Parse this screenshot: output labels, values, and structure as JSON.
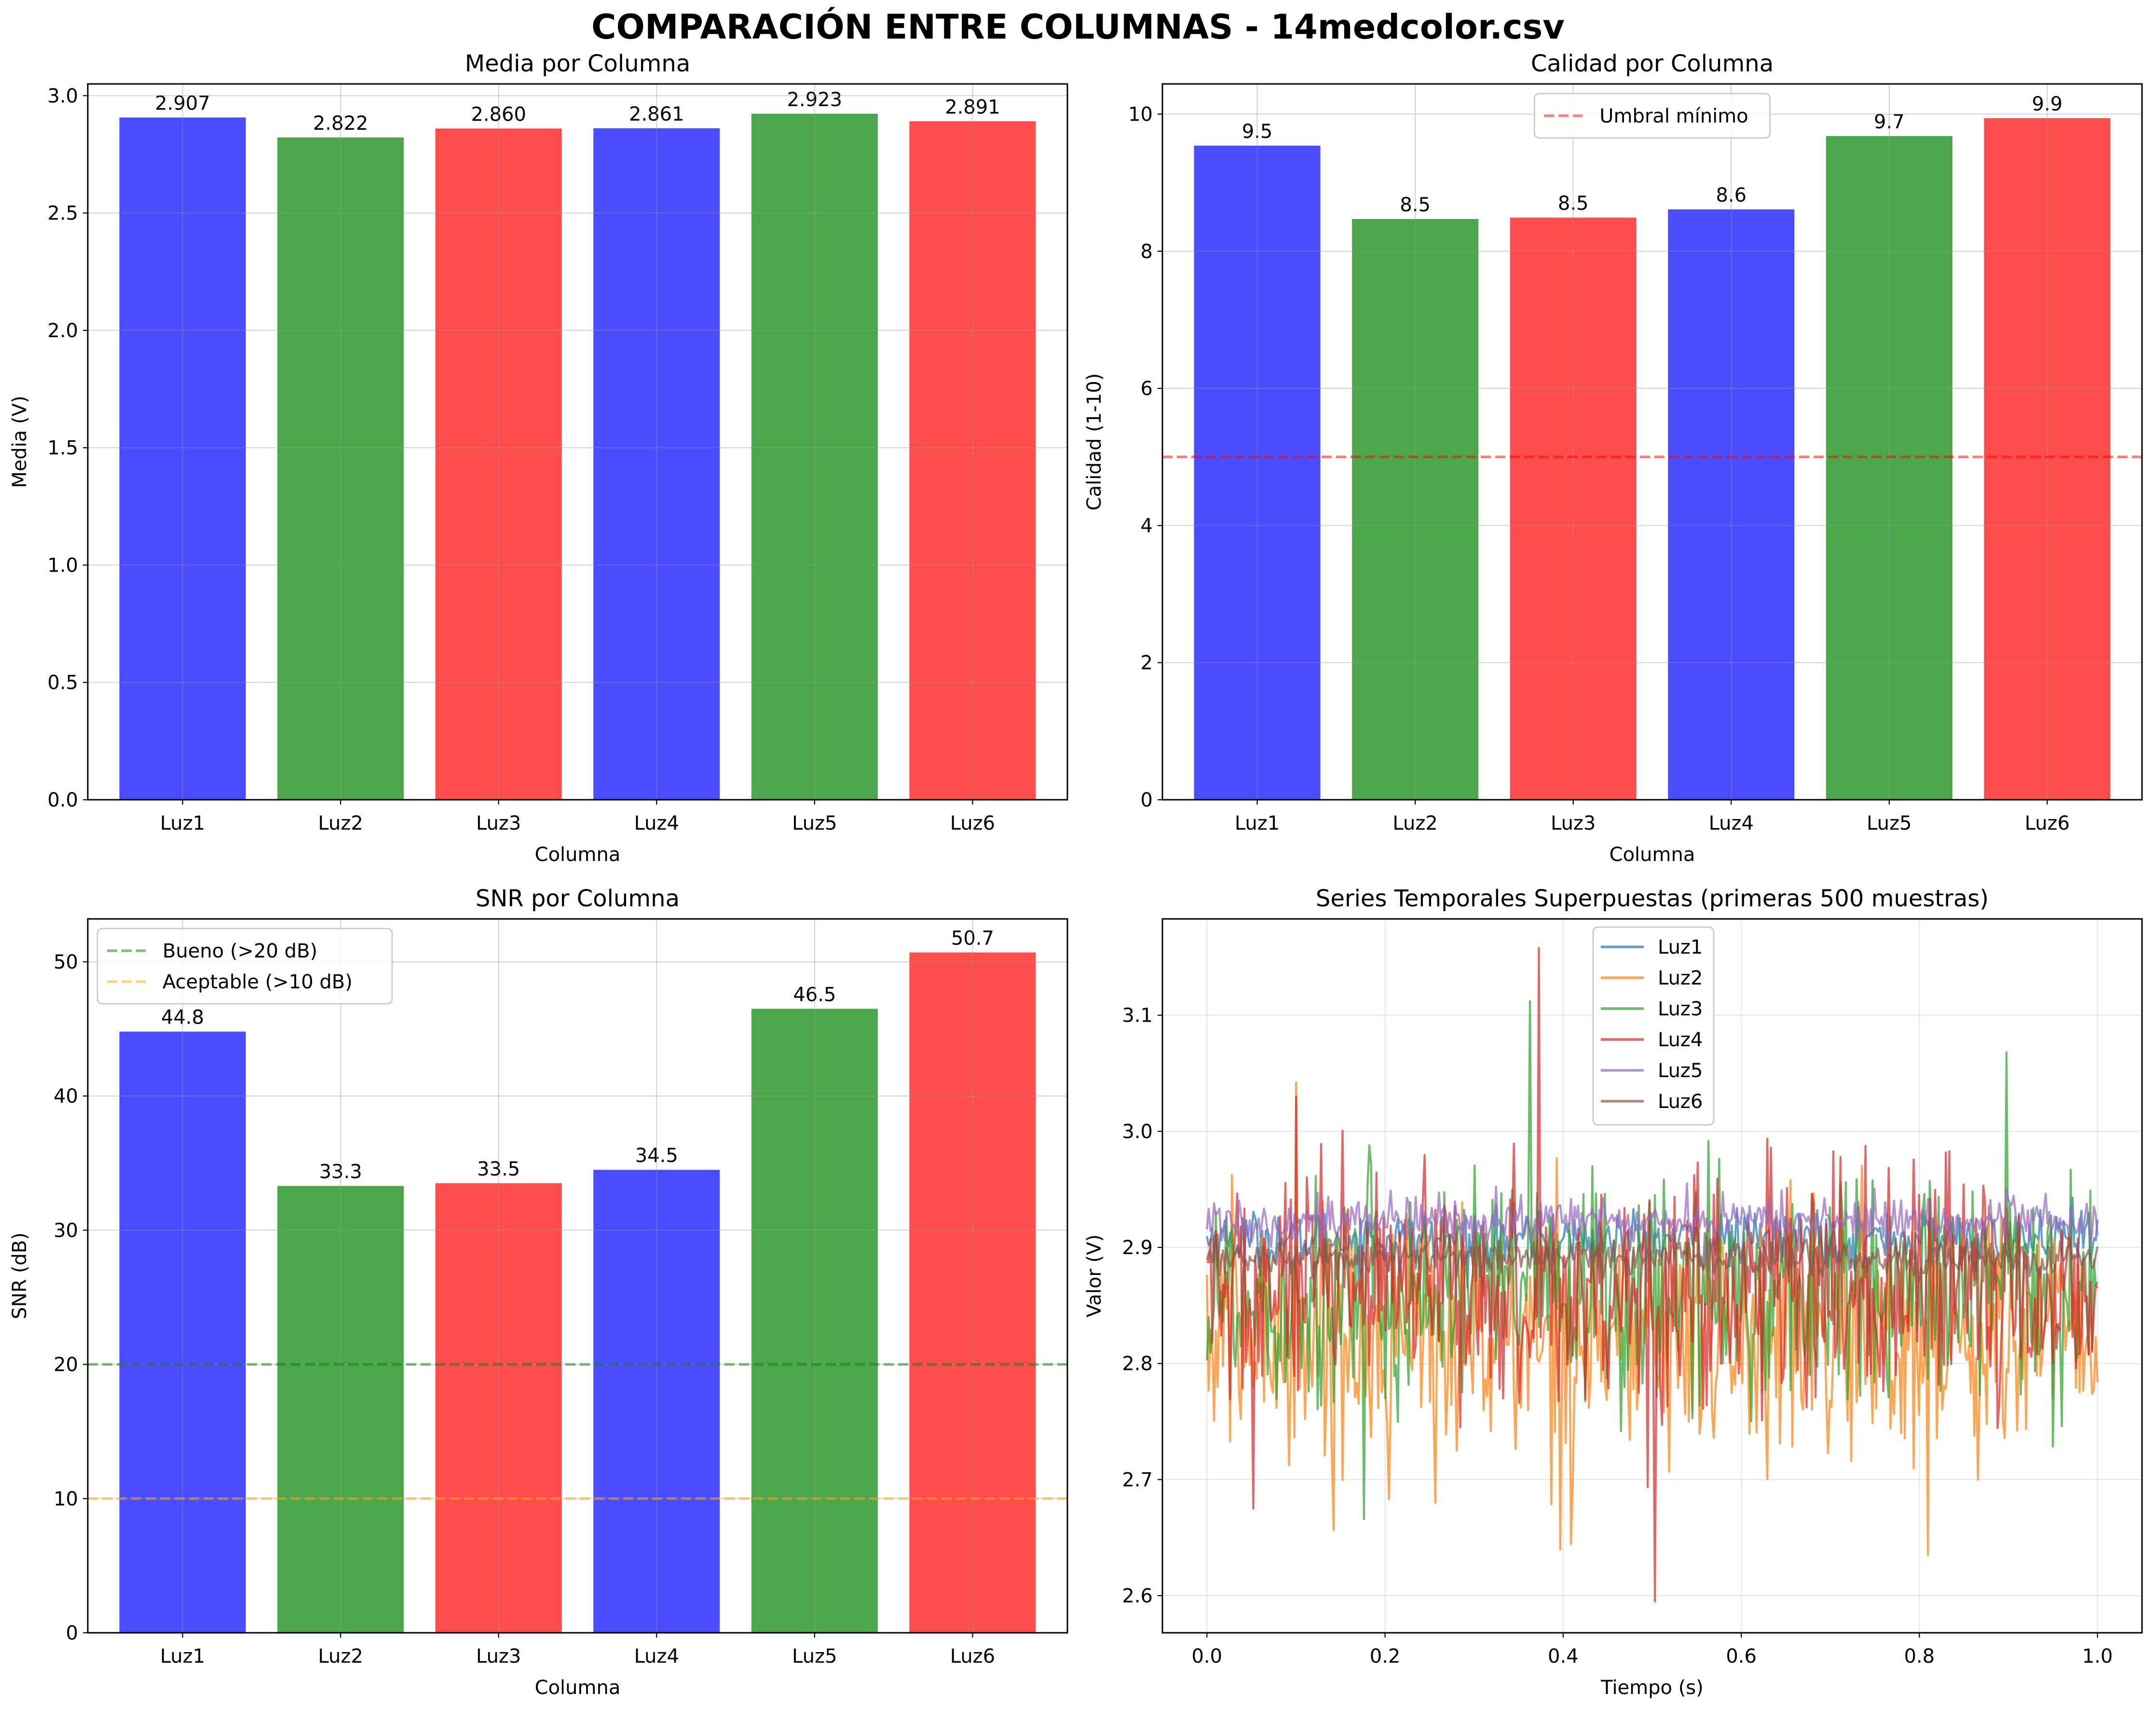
{
  "figure": {
    "suptitle": "COMPARACIÓN ENTRE COLUMNAS - 14medcolor.csv"
  },
  "colors": {
    "blue": "#0000ff",
    "green": "#008000",
    "red": "#ff0000",
    "bar_alpha": 0.7,
    "threshold_red": "#ff0000",
    "threshold_green": "#008000",
    "threshold_orange": "#ffa500",
    "series": [
      "#1f77b4",
      "#ff7f0e",
      "#2ca02c",
      "#d62728",
      "#9467bd",
      "#8c564b"
    ]
  },
  "chart_data": [
    {
      "id": "media",
      "type": "bar",
      "title": "Media por Columna",
      "xlabel": "Columna",
      "ylabel": "Media (V)",
      "categories": [
        "Luz1",
        "Luz2",
        "Luz3",
        "Luz4",
        "Luz5",
        "Luz6"
      ],
      "values": [
        2.907,
        2.822,
        2.86,
        2.861,
        2.923,
        2.891
      ],
      "value_labels": [
        "2.907",
        "2.822",
        "2.860",
        "2.861",
        "2.923",
        "2.891"
      ],
      "bar_colors": [
        "blue",
        "green",
        "red",
        "blue",
        "green",
        "red"
      ],
      "ylim": [
        0,
        3.05
      ],
      "yticks": [
        0.0,
        0.5,
        1.0,
        1.5,
        2.0,
        2.5,
        3.0
      ],
      "ytick_labels": [
        "0.0",
        "0.5",
        "1.0",
        "1.5",
        "2.0",
        "2.5",
        "3.0"
      ],
      "grid": true,
      "hlines": [],
      "legend": null
    },
    {
      "id": "calidad",
      "type": "bar",
      "title": "Calidad por Columna",
      "xlabel": "Columna",
      "ylabel": "Calidad (1-10)",
      "categories": [
        "Luz1",
        "Luz2",
        "Luz3",
        "Luz4",
        "Luz5",
        "Luz6"
      ],
      "values": [
        9.54,
        8.47,
        8.49,
        8.61,
        9.68,
        9.94
      ],
      "value_labels": [
        "9.5",
        "8.5",
        "8.5",
        "8.6",
        "9.7",
        "9.9"
      ],
      "bar_colors": [
        "blue",
        "green",
        "red",
        "blue",
        "green",
        "red"
      ],
      "ylim": [
        0,
        10.44
      ],
      "yticks": [
        0,
        2,
        4,
        6,
        8,
        10
      ],
      "ytick_labels": [
        "0",
        "2",
        "4",
        "6",
        "8",
        "10"
      ],
      "grid": true,
      "hlines": [
        {
          "y": 5,
          "color": "threshold_red",
          "alpha": 0.5,
          "label": "Umbral mínimo"
        }
      ],
      "legend": {
        "placement": "upper-center",
        "entries": [
          "Umbral mínimo"
        ]
      }
    },
    {
      "id": "snr",
      "type": "bar",
      "title": "SNR por Columna",
      "xlabel": "Columna",
      "ylabel": "SNR (dB)",
      "categories": [
        "Luz1",
        "Luz2",
        "Luz3",
        "Luz4",
        "Luz5",
        "Luz6"
      ],
      "values": [
        44.8,
        33.3,
        33.5,
        34.5,
        46.5,
        50.7
      ],
      "value_labels": [
        "44.8",
        "33.3",
        "33.5",
        "34.5",
        "46.5",
        "50.7"
      ],
      "bar_colors": [
        "blue",
        "green",
        "red",
        "blue",
        "green",
        "red"
      ],
      "ylim": [
        0,
        53.2
      ],
      "yticks": [
        0,
        10,
        20,
        30,
        40,
        50
      ],
      "ytick_labels": [
        "0",
        "10",
        "20",
        "30",
        "40",
        "50"
      ],
      "grid": true,
      "hlines": [
        {
          "y": 20,
          "color": "threshold_green",
          "alpha": 0.5,
          "label": "Bueno (>20 dB)"
        },
        {
          "y": 10,
          "color": "threshold_orange",
          "alpha": 0.5,
          "label": "Aceptable (>10 dB)"
        }
      ],
      "legend": {
        "placement": "upper-left",
        "entries": [
          "Bueno (>20 dB)",
          "Aceptable (>10 dB)"
        ]
      }
    },
    {
      "id": "series",
      "type": "line",
      "title": "Series Temporales Superpuestas (primeras 500 muestras)",
      "xlabel": "Tiempo (s)",
      "ylabel": "Valor (V)",
      "xlim": [
        -0.05,
        1.05
      ],
      "ylim": [
        2.568,
        3.183
      ],
      "xticks": [
        0.0,
        0.2,
        0.4,
        0.6,
        0.8,
        1.0
      ],
      "xtick_labels": [
        "0.0",
        "0.2",
        "0.4",
        "0.6",
        "0.8",
        "1.0"
      ],
      "yticks": [
        2.6,
        2.7,
        2.8,
        2.9,
        3.0,
        3.1
      ],
      "ytick_labels": [
        "2.6",
        "2.7",
        "2.8",
        "2.9",
        "3.0",
        "3.1"
      ],
      "grid": true,
      "n_samples": 500,
      "x_range": [
        0.0,
        1.0
      ],
      "legend": {
        "placement": "upper-center",
        "entries": [
          "Luz1",
          "Luz2",
          "Luz3",
          "Luz4",
          "Luz5",
          "Luz6"
        ]
      },
      "series": [
        {
          "name": "Luz1",
          "mean": 2.907,
          "spread": 0.012,
          "min": 2.86,
          "max": 2.95,
          "spikes": []
        },
        {
          "name": "Luz2",
          "mean": 2.822,
          "spread": 0.055,
          "min": 2.635,
          "max": 3.042,
          "spikes": [
            {
              "x": 0.1,
              "y": 3.042
            },
            {
              "x": 0.81,
              "y": 2.635
            },
            {
              "x": 0.256,
              "y": 2.68
            }
          ]
        },
        {
          "name": "Luz3",
          "mean": 2.86,
          "spread": 0.05,
          "min": 2.666,
          "max": 3.112,
          "spikes": [
            {
              "x": 0.362,
              "y": 3.112
            },
            {
              "x": 0.176,
              "y": 2.666
            },
            {
              "x": 0.898,
              "y": 3.068
            }
          ]
        },
        {
          "name": "Luz4",
          "mean": 2.861,
          "spread": 0.05,
          "min": 2.595,
          "max": 3.158,
          "spikes": [
            {
              "x": 0.372,
              "y": 3.158
            },
            {
              "x": 0.504,
              "y": 2.595
            },
            {
              "x": 0.052,
              "y": 2.675
            },
            {
              "x": 0.1,
              "y": 3.03
            }
          ]
        },
        {
          "name": "Luz5",
          "mean": 2.923,
          "spread": 0.01,
          "min": 2.89,
          "max": 2.96,
          "spikes": []
        },
        {
          "name": "Luz6",
          "mean": 2.891,
          "spread": 0.008,
          "min": 2.86,
          "max": 2.92,
          "spikes": []
        }
      ]
    }
  ]
}
